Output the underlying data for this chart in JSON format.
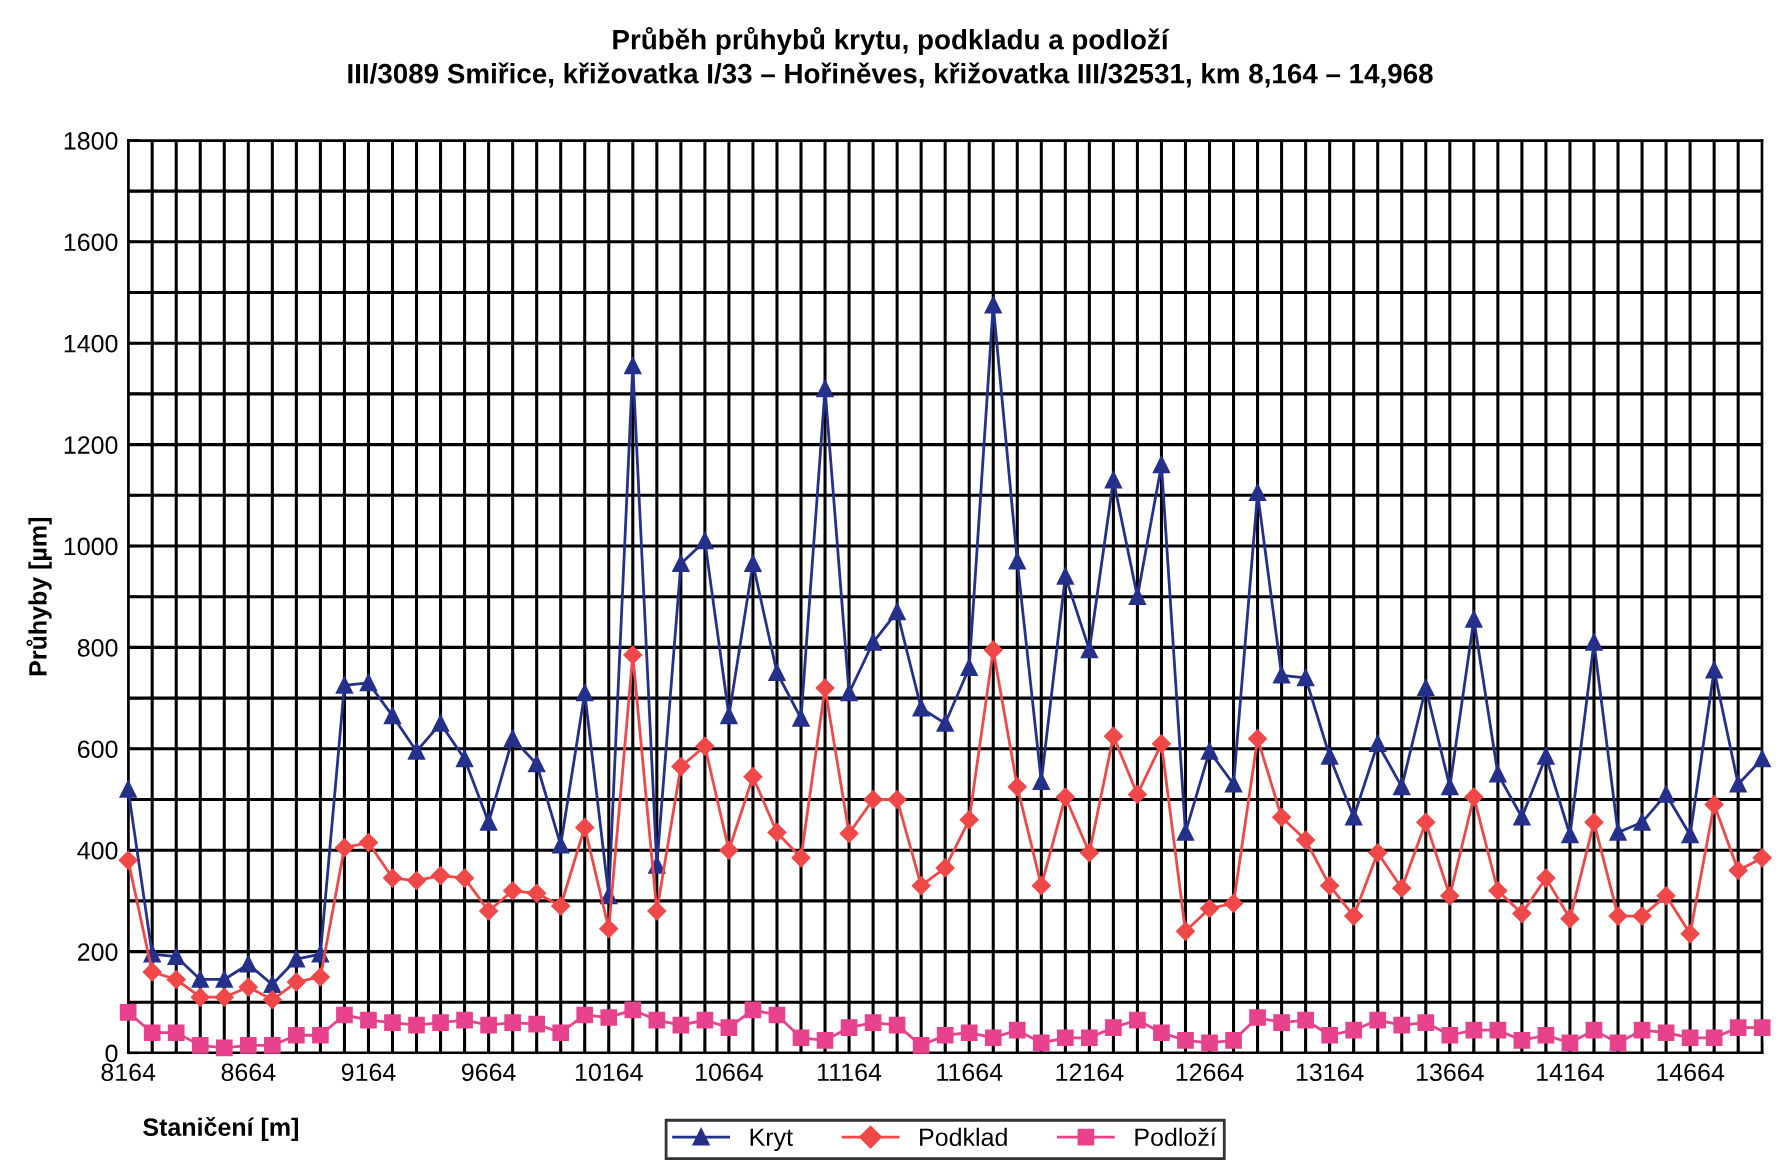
{
  "chart_data": {
    "type": "line",
    "title": "Průběh průhybů krytu, podkladu a podloží",
    "subtitle": "III/3089 Smiřice, křižovatka I/33 – Hořiněves, křižovatka III/32531, km 8,164 – 14,968",
    "xlabel": "Staničení [m]",
    "ylabel": "Průhyby [µm]",
    "x": [
      8164,
      8264,
      8364,
      8464,
      8564,
      8664,
      8764,
      8864,
      8964,
      9064,
      9164,
      9264,
      9364,
      9464,
      9564,
      9664,
      9764,
      9864,
      9964,
      10064,
      10164,
      10264,
      10364,
      10464,
      10564,
      10664,
      10764,
      10864,
      10964,
      11064,
      11164,
      11264,
      11364,
      11464,
      11564,
      11664,
      11764,
      11864,
      11964,
      12064,
      12164,
      12264,
      12364,
      12464,
      12564,
      12664,
      12764,
      12864,
      12964,
      13064,
      13164,
      13264,
      13364,
      13464,
      13564,
      13664,
      13764,
      13864,
      13964,
      14064,
      14164,
      14264,
      14364,
      14464,
      14564,
      14664,
      14764,
      14864,
      14964
    ],
    "series": [
      {
        "name": "Kryt",
        "color": "#24308a",
        "marker": "triangle",
        "values": [
          520,
          195,
          190,
          145,
          145,
          175,
          135,
          185,
          195,
          725,
          730,
          665,
          595,
          650,
          580,
          455,
          620,
          570,
          410,
          710,
          310,
          1355,
          370,
          965,
          1010,
          665,
          965,
          750,
          660,
          1310,
          710,
          810,
          870,
          680,
          650,
          760,
          1475,
          970,
          535,
          940,
          795,
          1130,
          900,
          1160,
          435,
          595,
          530,
          1105,
          745,
          740,
          585,
          465,
          610,
          525,
          720,
          525,
          855,
          550,
          465,
          585,
          430,
          810,
          435,
          455,
          510,
          430,
          755,
          530,
          580
        ]
      },
      {
        "name": "Podklad",
        "color": "#f04848",
        "marker": "diamond",
        "values": [
          380,
          160,
          145,
          110,
          110,
          130,
          105,
          140,
          150,
          405,
          415,
          345,
          340,
          350,
          345,
          280,
          320,
          315,
          290,
          445,
          245,
          785,
          280,
          565,
          605,
          400,
          545,
          435,
          385,
          720,
          433,
          500,
          500,
          330,
          365,
          460,
          795,
          525,
          330,
          505,
          395,
          625,
          510,
          610,
          240,
          285,
          295,
          620,
          465,
          420,
          330,
          270,
          395,
          325,
          455,
          310,
          505,
          320,
          275,
          345,
          265,
          455,
          270,
          270,
          310,
          235,
          490,
          360,
          385
        ]
      },
      {
        "name": "Podloží",
        "color": "#e8428c",
        "marker": "square",
        "values": [
          80,
          40,
          40,
          15,
          10,
          15,
          15,
          35,
          35,
          75,
          65,
          60,
          55,
          60,
          65,
          55,
          60,
          57,
          40,
          75,
          70,
          85,
          65,
          55,
          65,
          50,
          85,
          75,
          30,
          25,
          50,
          60,
          55,
          15,
          35,
          40,
          30,
          45,
          20,
          30,
          30,
          50,
          65,
          40,
          25,
          20,
          25,
          70,
          60,
          65,
          35,
          45,
          65,
          55,
          60,
          35,
          45,
          45,
          25,
          35,
          20,
          45,
          20,
          45,
          40,
          30,
          30,
          50,
          50
        ]
      }
    ],
    "xlim": [
      8164,
      14964
    ],
    "xticks": [
      8164,
      {
        "value": 8264,
        "label": null
      },
      {
        "value": 8364,
        "label": null
      },
      {
        "value": 8464,
        "label": null
      },
      {
        "value": 8564,
        "label": null
      },
      8664,
      {
        "value": 8764,
        "label": null
      },
      {
        "value": 8864,
        "label": null
      },
      {
        "value": 8964,
        "label": null
      },
      {
        "value": 9064,
        "label": null
      },
      9164,
      {
        "value": 9264,
        "label": null
      },
      {
        "value": 9364,
        "label": null
      },
      {
        "value": 9464,
        "label": null
      },
      {
        "value": 9564,
        "label": null
      },
      9664,
      {
        "value": 9764,
        "label": null
      },
      {
        "value": 9864,
        "label": null
      },
      {
        "value": 9964,
        "label": null
      },
      {
        "value": 10064,
        "label": null
      },
      10164,
      {
        "value": 10264,
        "label": null
      },
      {
        "value": 10364,
        "label": null
      },
      {
        "value": 10464,
        "label": null
      },
      {
        "value": 10564,
        "label": null
      },
      10664,
      {
        "value": 10764,
        "label": null
      },
      {
        "value": 10864,
        "label": null
      },
      {
        "value": 10964,
        "label": null
      },
      {
        "value": 11064,
        "label": null
      },
      11164,
      {
        "value": 11264,
        "label": null
      },
      {
        "value": 11364,
        "label": null
      },
      {
        "value": 11464,
        "label": null
      },
      {
        "value": 11564,
        "label": null
      },
      11664,
      {
        "value": 11764,
        "label": null
      },
      {
        "value": 11864,
        "label": null
      },
      {
        "value": 11964,
        "label": null
      },
      {
        "value": 12064,
        "label": null
      },
      12164,
      {
        "value": 12264,
        "label": null
      },
      {
        "value": 12364,
        "label": null
      },
      {
        "value": 12464,
        "label": null
      },
      {
        "value": 12564,
        "label": null
      },
      12664,
      {
        "value": 12764,
        "label": null
      },
      {
        "value": 12864,
        "label": null
      },
      {
        "value": 12964,
        "label": null
      },
      {
        "value": 13064,
        "label": null
      },
      13164,
      {
        "value": 13264,
        "label": null
      },
      {
        "value": 13364,
        "label": null
      },
      {
        "value": 13464,
        "label": null
      },
      {
        "value": 13564,
        "label": null
      },
      13664,
      {
        "value": 13764,
        "label": null
      },
      {
        "value": 13864,
        "label": null
      },
      {
        "value": 13964,
        "label": null
      },
      {
        "value": 14064,
        "label": null
      },
      14164,
      {
        "value": 14264,
        "label": null
      },
      {
        "value": 14364,
        "label": null
      },
      {
        "value": 14464,
        "label": null
      },
      {
        "value": 14564,
        "label": null
      },
      14664,
      {
        "value": 14764,
        "label": null
      },
      {
        "value": 14864,
        "label": null
      },
      {
        "value": 14964,
        "label": null
      }
    ],
    "ylim": [
      0,
      1800
    ],
    "yticks": [
      0,
      {
        "value": 100,
        "label": null
      },
      200,
      {
        "value": 300,
        "label": null
      },
      400,
      {
        "value": 500,
        "label": null
      },
      600,
      {
        "value": 700,
        "label": null
      },
      800,
      {
        "value": 900,
        "label": null
      },
      1000,
      {
        "value": 1100,
        "label": null
      },
      1200,
      {
        "value": 1300,
        "label": null
      },
      1400,
      {
        "value": 1500,
        "label": null
      },
      1600,
      {
        "value": 1700,
        "label": null
      },
      1800
    ],
    "grid": true,
    "legend": "bottom",
    "line_style": "solid"
  }
}
